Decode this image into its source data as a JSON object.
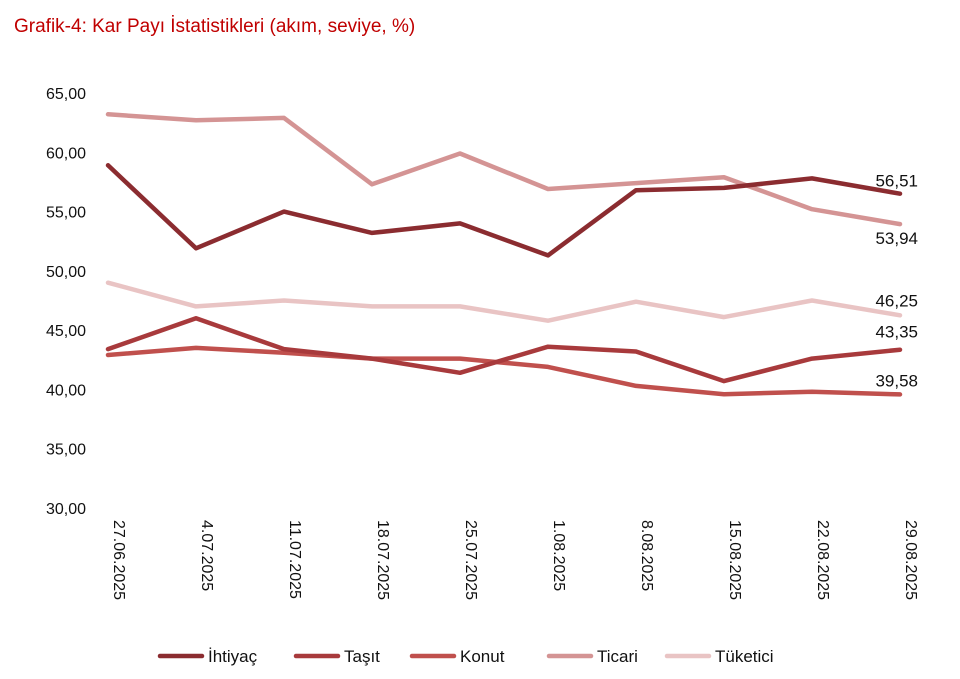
{
  "title": "Grafik-4: Kar Payı İstatistikleri (akım, seviye, %)",
  "chart_data": {
    "type": "line",
    "title": "Grafik-4: Kar Payı İstatistikleri (akım, seviye, %)",
    "xlabel": "",
    "ylabel": "",
    "categories": [
      "27.06.2025",
      "4.07.2025",
      "11.07.2025",
      "18.07.2025",
      "25.07.2025",
      "1.08.2025",
      "8.08.2025",
      "15.08.2025",
      "22.08.2025",
      "29.08.2025"
    ],
    "ylim": [
      30,
      65
    ],
    "yticks": [
      "30,00",
      "35,00",
      "40,00",
      "45,00",
      "50,00",
      "55,00",
      "60,00",
      "65,00"
    ],
    "grid": false,
    "legend_position": "bottom",
    "series": [
      {
        "name": "İhtiyaç",
        "color": "#8b2c30",
        "values": [
          58.9,
          51.9,
          55.0,
          53.2,
          54.0,
          51.3,
          56.8,
          57.0,
          57.8,
          56.51
        ],
        "end_label": "56,51"
      },
      {
        "name": "Taşıt",
        "color": "#a83a3c",
        "values": [
          43.4,
          46.0,
          43.4,
          42.6,
          41.4,
          43.6,
          43.2,
          40.7,
          42.6,
          43.35
        ],
        "end_label": "43,35"
      },
      {
        "name": "Konut",
        "color": "#c0504d",
        "values": [
          42.9,
          43.5,
          43.1,
          42.6,
          42.6,
          41.9,
          40.3,
          39.6,
          39.8,
          39.58
        ],
        "end_label": "39,58"
      },
      {
        "name": "Ticari",
        "color": "#d49494",
        "values": [
          63.2,
          62.7,
          62.9,
          57.3,
          59.9,
          56.9,
          57.4,
          57.9,
          55.2,
          53.94
        ],
        "end_label": "53,94"
      },
      {
        "name": "Tüketici",
        "color": "#e9c4c4",
        "values": [
          49.0,
          47.0,
          47.5,
          47.0,
          47.0,
          45.8,
          47.4,
          46.1,
          47.5,
          46.25
        ],
        "end_label": "46,25"
      }
    ]
  }
}
